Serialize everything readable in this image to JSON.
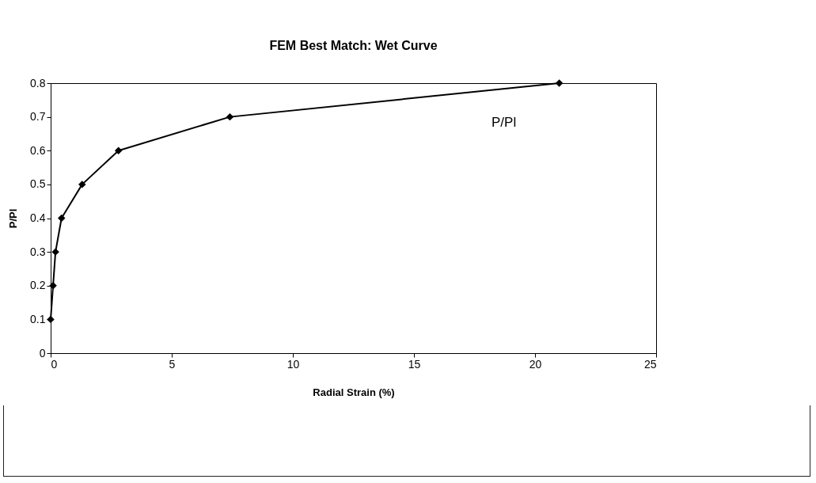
{
  "chart_data": {
    "type": "line",
    "title": "FEM Best Match:  Wet Curve",
    "xlabel": "Radial Strain (%)",
    "ylabel": "P/Pl",
    "x": [
      0,
      0.1,
      0.2,
      0.45,
      1.3,
      2.8,
      7.4,
      21.0
    ],
    "series": [
      {
        "name": "P/Pl",
        "color": "#000000",
        "values": [
          0.1,
          0.2,
          0.3,
          0.4,
          0.5,
          0.6,
          0.7,
          0.8
        ]
      }
    ],
    "xlim": [
      0,
      25
    ],
    "xticks": [
      0,
      5,
      10,
      15,
      20,
      25
    ],
    "ylim": [
      0,
      0.8
    ],
    "yticks": [
      0,
      0.1,
      0.2,
      0.3,
      0.4,
      0.5,
      0.6,
      0.7,
      0.8
    ],
    "grid": false,
    "marker": "diamond",
    "line_style": "solid"
  }
}
